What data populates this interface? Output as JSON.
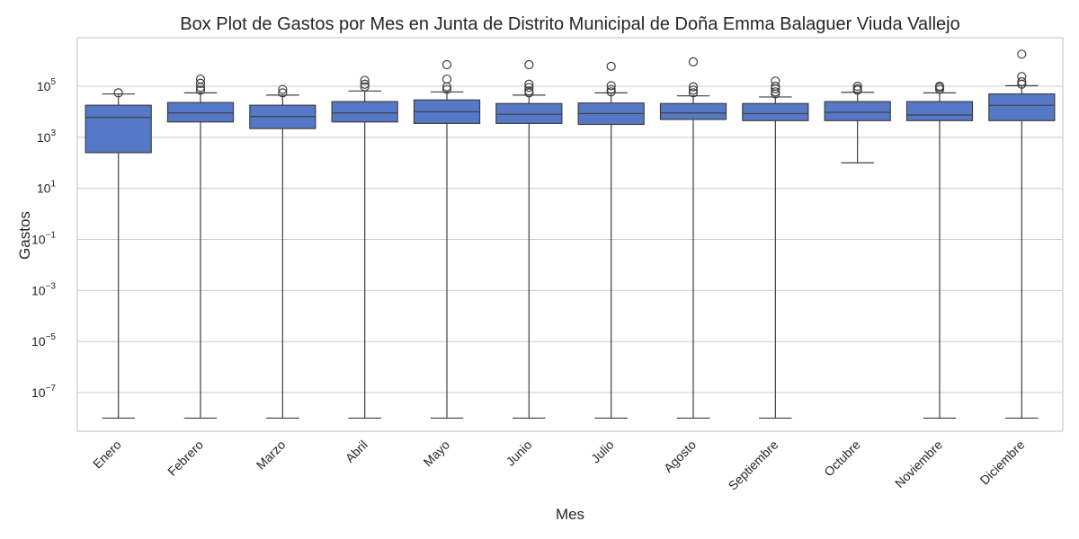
{
  "chart_data": {
    "type": "box",
    "title": "Box Plot de Gastos por Mes en Junta de Distrito Municipal de Doña Emma Balaguer Viuda Vallejo",
    "xlabel": "Mes",
    "ylabel": "Gastos",
    "y_scale": "log",
    "ylim": [
      1e-09,
      10000000.0
    ],
    "y_ticks": [
      {
        "value": 100000,
        "base": "10",
        "exp": "5"
      },
      {
        "value": 1000,
        "base": "10",
        "exp": "3"
      },
      {
        "value": 10,
        "base": "10",
        "exp": "1"
      },
      {
        "value": 0.1,
        "base": "10",
        "exp": "−1"
      },
      {
        "value": 0.001,
        "base": "10",
        "exp": "−3"
      },
      {
        "value": 1e-05,
        "base": "10",
        "exp": "−5"
      },
      {
        "value": 1e-07,
        "base": "10",
        "exp": "−7"
      }
    ],
    "grid": true,
    "box_color": "#5579c6",
    "categories": [
      "Enero",
      "Febrero",
      "Marzo",
      "Abril",
      "Mayo",
      "Junio",
      "Julio",
      "Agosto",
      "Septiembre",
      "Octubre",
      "Noviembre",
      "Diciembre"
    ],
    "boxes": [
      {
        "whisker_low": 1e-08,
        "q1": 250,
        "median": 6000,
        "q3": 18000,
        "whisker_high": 50000,
        "fliers": [
          55000
        ]
      },
      {
        "whisker_low": 1e-08,
        "q1": 4000,
        "median": 9000,
        "q3": 23000,
        "whisker_high": 55000,
        "fliers": [
          70000,
          90000,
          130000,
          190000
        ]
      },
      {
        "whisker_low": 1e-08,
        "q1": 2200,
        "median": 6500,
        "q3": 18000,
        "whisker_high": 45000,
        "fliers": [
          55000,
          75000
        ]
      },
      {
        "whisker_low": 1e-08,
        "q1": 4000,
        "median": 9000,
        "q3": 25000,
        "whisker_high": 65000,
        "fliers": [
          95000,
          120000,
          170000
        ]
      },
      {
        "whisker_low": 1e-08,
        "q1": 3500,
        "median": 10000,
        "q3": 29000,
        "whisker_high": 60000,
        "fliers": [
          75000,
          95000,
          190000,
          700000
        ]
      },
      {
        "whisker_low": 1e-08,
        "q1": 3500,
        "median": 8000,
        "q3": 21000,
        "whisker_high": 45000,
        "fliers": [
          55000,
          65000,
          90000,
          120000,
          700000
        ]
      },
      {
        "whisker_low": 1e-08,
        "q1": 3200,
        "median": 8500,
        "q3": 22000,
        "whisker_high": 55000,
        "fliers": [
          60000,
          75000,
          105000,
          600000
        ]
      },
      {
        "whisker_low": 1e-08,
        "q1": 5000,
        "median": 9000,
        "q3": 21000,
        "whisker_high": 42000,
        "fliers": [
          55000,
          70000,
          95000,
          900000
        ]
      },
      {
        "whisker_low": 1e-08,
        "q1": 4500,
        "median": 8500,
        "q3": 21000,
        "whisker_high": 38000,
        "fliers": [
          50000,
          60000,
          80000,
          100000,
          160000
        ]
      },
      {
        "whisker_low": 100,
        "q1": 4500,
        "median": 9500,
        "q3": 25000,
        "whisker_high": 58000,
        "fliers": [
          70000,
          80000,
          100000
        ]
      },
      {
        "whisker_low": 1e-08,
        "q1": 4500,
        "median": 7500,
        "q3": 25000,
        "whisker_high": 55000,
        "fliers": [
          75000,
          90000,
          100000
        ]
      },
      {
        "whisker_low": 1e-08,
        "q1": 4500,
        "median": 18000,
        "q3": 50000,
        "whisker_high": 105000,
        "fliers": [
          120000,
          150000,
          240000,
          1800000
        ]
      }
    ]
  }
}
